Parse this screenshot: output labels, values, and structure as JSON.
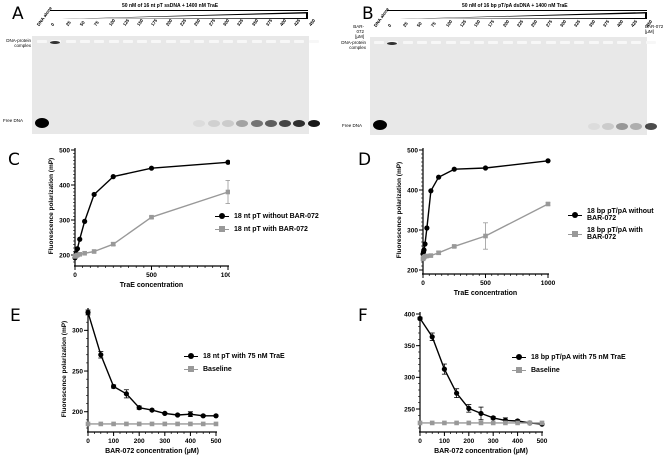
{
  "panels": {
    "A": {
      "letter": "A",
      "title": "50 nM of 16 nt pT ssDNA + 1400 nM TraE",
      "first_lane": "DNA alone",
      "lanes": [
        "0",
        "25",
        "50",
        "75",
        "100",
        "125",
        "150",
        "175",
        "200",
        "225",
        "250",
        "275",
        "300",
        "325",
        "350",
        "375",
        "400",
        "425",
        "450"
      ],
      "complex_label": "DNA-protein complex",
      "free_label": "Free DNA"
    },
    "B": {
      "letter": "B",
      "title": "50 nM of 16 bp pT/pA dsDNA + 1400 nM TraE",
      "first_lane": "DNA alone",
      "axis_label_left": "BAR-072 [µM]",
      "axis_label_right": "BAR-072 [µM]",
      "lanes": [
        "0",
        "25",
        "50",
        "75",
        "100",
        "125",
        "150",
        "175",
        "200",
        "225",
        "250",
        "275",
        "300",
        "325",
        "350",
        "375",
        "400",
        "425",
        "450"
      ],
      "complex_label": "DNA-protein complex",
      "free_label": "Free DNA"
    },
    "C": {
      "letter": "C"
    },
    "D": {
      "letter": "D"
    },
    "E": {
      "letter": "E"
    },
    "F": {
      "letter": "F"
    }
  },
  "colors": {
    "black_series": "#000000",
    "gray_series": "#999999",
    "gel_bg": "#e6e6e6"
  },
  "chart_data": [
    {
      "panel": "C",
      "type": "line",
      "xlabel": "TraE concentration",
      "ylabel": "Fluorescence polarization (mP)",
      "xlim": [
        0,
        1000
      ],
      "ylim": [
        180,
        500
      ],
      "xticks": [
        0,
        500,
        1000
      ],
      "yticks": [
        200,
        300,
        400,
        500
      ],
      "legend_position": "right",
      "series": [
        {
          "name": "18 nt pT without BAR-072",
          "color": "#000000",
          "marker": "circle",
          "x": [
            0,
            4,
            8,
            16,
            31,
            63,
            125,
            250,
            500,
            1000
          ],
          "y": [
            192,
            197,
            205,
            218,
            245,
            296,
            373,
            424,
            448,
            465
          ]
        },
        {
          "name": "18 nt pT with BAR-072",
          "color": "#999999",
          "marker": "square",
          "x": [
            0,
            4,
            8,
            16,
            31,
            63,
            125,
            250,
            500,
            1000
          ],
          "y": [
            196,
            197,
            198,
            200,
            202,
            205,
            210,
            231,
            308,
            380
          ],
          "error": [
            0,
            0,
            0,
            0,
            0,
            0,
            0,
            4,
            3,
            33
          ]
        }
      ]
    },
    {
      "panel": "D",
      "type": "line",
      "xlabel": "TraE concentration",
      "ylabel": "Fluorescence polarization (mP)",
      "xlim": [
        0,
        1000
      ],
      "ylim": [
        200,
        500
      ],
      "xticks": [
        0,
        500,
        1000
      ],
      "yticks": [
        200,
        300,
        400,
        500
      ],
      "legend_position": "right",
      "series": [
        {
          "name": "18 bp pT/pA without BAR-072",
          "color": "#000000",
          "marker": "circle",
          "x": [
            0,
            4,
            8,
            16,
            31,
            63,
            125,
            250,
            500,
            1000
          ],
          "y": [
            240,
            245,
            250,
            265,
            305,
            398,
            432,
            452,
            455,
            473
          ]
        },
        {
          "name": "18 bp pT/pA with BAR-072",
          "color": "#999999",
          "marker": "square",
          "x": [
            0,
            4,
            8,
            16,
            31,
            63,
            125,
            250,
            500,
            1000
          ],
          "y": [
            228,
            230,
            232,
            234,
            235,
            236,
            243,
            259,
            285,
            365
          ],
          "error": [
            0,
            0,
            0,
            0,
            0,
            0,
            4,
            3,
            33,
            3
          ]
        }
      ]
    },
    {
      "panel": "E",
      "type": "line",
      "xlabel": "BAR-072 concentration (µM)",
      "ylabel": "Fluorescence polarization (mP)",
      "xlim": [
        0,
        500
      ],
      "ylim": [
        180,
        325
      ],
      "xticks": [
        0,
        100,
        200,
        300,
        400,
        500
      ],
      "yticks": [
        200,
        250,
        300
      ],
      "legend_position": "right",
      "series": [
        {
          "name": "18 nt pT with 75 nM TraE",
          "color": "#000000",
          "marker": "circle",
          "x": [
            0,
            50,
            100,
            150,
            200,
            250,
            300,
            350,
            400,
            450,
            500
          ],
          "y": [
            322,
            270,
            231,
            222,
            205,
            202,
            198,
            196,
            197,
            195,
            195
          ],
          "error": [
            3,
            4,
            2,
            5,
            2,
            1,
            1,
            1,
            3,
            1,
            1
          ]
        },
        {
          "name": "Baseline",
          "color": "#999999",
          "marker": "square",
          "x": [
            0,
            50,
            100,
            150,
            200,
            250,
            300,
            350,
            400,
            450,
            500
          ],
          "y": [
            185,
            185,
            185,
            185,
            185,
            185,
            185,
            185,
            185,
            185,
            185
          ]
        }
      ]
    },
    {
      "panel": "F",
      "type": "line",
      "xlabel": "BAR-072 concentration (µM)",
      "ylabel": "Fluorescence polarization (mP)",
      "xlim": [
        0,
        500
      ],
      "ylim": [
        220,
        400
      ],
      "xticks": [
        0,
        100,
        200,
        300,
        400,
        500
      ],
      "yticks": [
        250,
        300,
        350,
        400
      ],
      "legend_position": "right",
      "series": [
        {
          "name": "18 bp pT/pA with 75 nM TraE",
          "color": "#000000",
          "marker": "circle",
          "x": [
            0,
            50,
            100,
            150,
            200,
            250,
            300,
            350,
            400,
            450,
            500
          ],
          "y": [
            393,
            364,
            313,
            275,
            251,
            243,
            236,
            232,
            231,
            228,
            226
          ],
          "error": [
            2,
            6,
            8,
            7,
            6,
            10,
            2,
            4,
            2,
            1,
            1
          ]
        },
        {
          "name": "Baseline",
          "color": "#999999",
          "marker": "square",
          "x": [
            0,
            50,
            100,
            150,
            200,
            250,
            300,
            350,
            400,
            450,
            500
          ],
          "y": [
            228,
            228,
            228,
            228,
            228,
            228,
            228,
            228,
            228,
            228,
            228
          ]
        }
      ]
    }
  ]
}
